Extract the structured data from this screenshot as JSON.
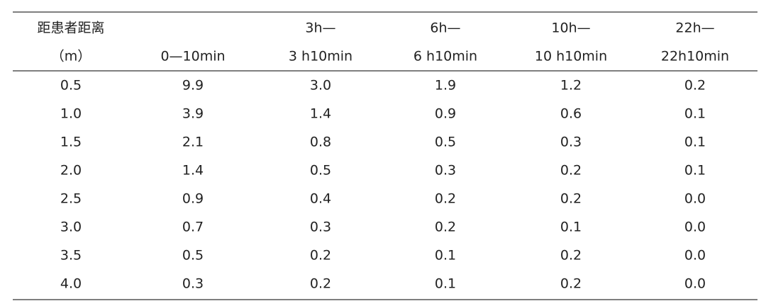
{
  "table": {
    "header": [
      [
        "距患者距离",
        "（m）"
      ],
      [
        "0—10min"
      ],
      [
        "3h—",
        "3 h10min"
      ],
      [
        "6h—",
        "6 h10min"
      ],
      [
        "10h—",
        "10 h10min"
      ],
      [
        "22h—",
        "22h10min"
      ]
    ],
    "rows": [
      [
        "0.5",
        "9.9",
        "3.0",
        "1.9",
        "1.2",
        "0.2"
      ],
      [
        "1.0",
        "3.9",
        "1.4",
        "0.9",
        "0.6",
        "0.1"
      ],
      [
        "1.5",
        "2.1",
        "0.8",
        "0.5",
        "0.3",
        "0.1"
      ],
      [
        "2.0",
        "1.4",
        "0.5",
        "0.3",
        "0.2",
        "0.1"
      ],
      [
        "2.5",
        "0.9",
        "0.4",
        "0.2",
        "0.2",
        "0.0"
      ],
      [
        "3.0",
        "0.7",
        "0.3",
        "0.2",
        "0.1",
        "0.0"
      ],
      [
        "3.5",
        "0.5",
        "0.2",
        "0.1",
        "0.2",
        "0.0"
      ],
      [
        "4.0",
        "0.3",
        "0.2",
        "0.1",
        "0.2",
        "0.0"
      ]
    ]
  }
}
